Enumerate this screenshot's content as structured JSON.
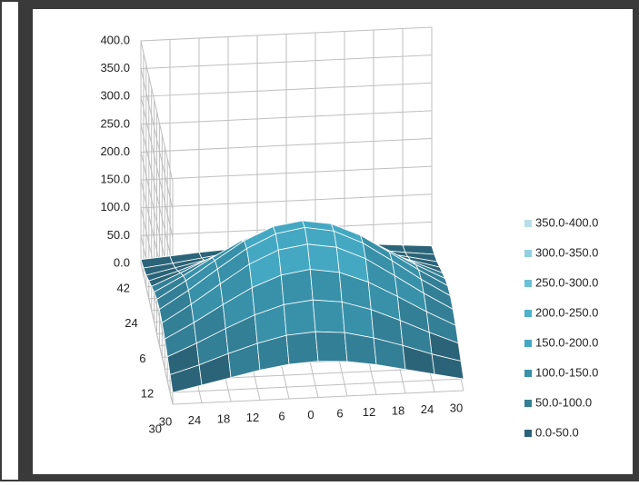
{
  "chart_data": {
    "type": "surface",
    "categories": [
      "30",
      "24",
      "18",
      "12",
      "6",
      "0",
      "6",
      "12",
      "18",
      "24",
      "30"
    ],
    "depth_categories": [
      "42",
      null,
      null,
      "24",
      null,
      null,
      "6",
      null,
      null,
      "12",
      null,
      null,
      "30"
    ],
    "zlim": [
      0,
      400
    ],
    "zticks": [
      {
        "value": 0,
        "label": "0.0"
      },
      {
        "value": 50,
        "label": "50.0"
      },
      {
        "value": 100,
        "label": "100.0"
      },
      {
        "value": 150,
        "label": "150.0"
      },
      {
        "value": 200,
        "label": "200.0"
      },
      {
        "value": 250,
        "label": "250.0"
      },
      {
        "value": 300,
        "label": "300.0"
      },
      {
        "value": 350,
        "label": "350.0"
      },
      {
        "value": 400,
        "label": "400.0"
      }
    ],
    "legend": [
      {
        "name": "350.0-400.0",
        "color": "#b7dfe9"
      },
      {
        "name": "300.0-350.0",
        "color": "#92d0e0"
      },
      {
        "name": "250.0-300.0",
        "color": "#6cc1d6"
      },
      {
        "name": "200.0-250.0",
        "color": "#4db3cc"
      },
      {
        "name": "150.0-200.0",
        "color": "#45a8c2"
      },
      {
        "name": "100.0-150.0",
        "color": "#3891a9"
      },
      {
        "name": "50.0-100.0",
        "color": "#337f96"
      },
      {
        "name": "0.0-50.0",
        "color": "#2b6478"
      }
    ],
    "rows": [
      [
        7,
        11,
        15,
        18,
        21,
        22,
        21,
        18,
        15,
        11,
        7
      ],
      [
        13,
        19,
        26,
        33,
        38,
        40,
        38,
        33,
        26,
        19,
        13
      ],
      [
        21,
        32,
        43,
        54,
        62,
        65,
        62,
        54,
        43,
        32,
        21
      ],
      [
        32,
        47,
        65,
        81,
        93,
        97,
        93,
        81,
        65,
        47,
        32
      ],
      [
        43,
        65,
        89,
        111,
        127,
        133,
        127,
        111,
        89,
        65,
        43
      ],
      [
        54,
        81,
        111,
        139,
        159,
        167,
        159,
        139,
        111,
        81,
        54
      ],
      [
        62,
        93,
        127,
        160,
        183,
        191,
        183,
        160,
        127,
        93,
        62
      ],
      [
        65,
        97,
        133,
        167,
        191,
        200,
        191,
        167,
        133,
        97,
        65
      ],
      [
        62,
        93,
        127,
        160,
        183,
        191,
        183,
        160,
        127,
        93,
        62
      ],
      [
        54,
        81,
        111,
        139,
        159,
        167,
        159,
        139,
        111,
        81,
        54
      ],
      [
        43,
        65,
        89,
        111,
        127,
        133,
        127,
        111,
        89,
        65,
        43
      ],
      [
        32,
        47,
        65,
        81,
        93,
        97,
        93,
        81,
        65,
        47,
        32
      ],
      [
        21,
        32,
        43,
        54,
        62,
        65,
        62,
        54,
        43,
        32,
        21
      ]
    ]
  }
}
